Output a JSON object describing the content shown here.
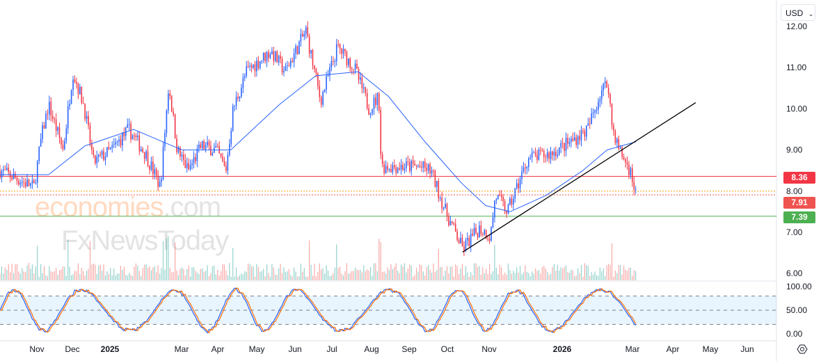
{
  "currency_selector": "USD",
  "watermark": {
    "line1": "economies",
    "line1_suffix": ".com",
    "line2": "FxNewsToday"
  },
  "price_labels": [
    {
      "value": "8.36",
      "color": "#f23645"
    },
    {
      "value": "7.91",
      "color": "#ef5350"
    },
    {
      "value": "7.39",
      "color": "#4caf50"
    }
  ],
  "chart_data": {
    "type": "candlestick",
    "title": "",
    "y_ticks": [
      "12.00",
      "11.00",
      "10.00",
      "9.00",
      "8.00",
      "7.00",
      "6.00"
    ],
    "ylim": [
      6,
      12
    ],
    "x_ticks": [
      "Nov",
      "Dec",
      "2025",
      "Mar",
      "Apr",
      "May",
      "Jun",
      "Jul",
      "Aug",
      "Sep",
      "Oct",
      "Nov",
      "2026",
      "Mar",
      "Apr",
      "May",
      "Jun"
    ],
    "price_path_days_from_2024_10_15": [
      [
        0,
        8.5
      ],
      [
        28,
        8.1
      ],
      [
        34,
        9.3
      ],
      [
        40,
        10.1
      ],
      [
        52,
        9.0
      ],
      [
        60,
        10.9
      ],
      [
        69,
        10.1
      ],
      [
        77,
        8.7
      ],
      [
        92,
        9.0
      ],
      [
        106,
        9.5
      ],
      [
        120,
        8.9
      ],
      [
        132,
        8.1
      ],
      [
        139,
        10.6
      ],
      [
        146,
        9.0
      ],
      [
        155,
        8.5
      ],
      [
        166,
        9.1
      ],
      [
        178,
        9.0
      ],
      [
        186,
        8.5
      ],
      [
        192,
        10.0
      ],
      [
        203,
        10.9
      ],
      [
        223,
        11.4
      ],
      [
        235,
        10.9
      ],
      [
        252,
        11.9
      ],
      [
        264,
        10.2
      ],
      [
        278,
        11.5
      ],
      [
        292,
        11.0
      ],
      [
        304,
        10.0
      ],
      [
        312,
        10.3
      ],
      [
        314,
        8.6
      ],
      [
        344,
        8.6
      ],
      [
        355,
        8.5
      ],
      [
        367,
        7.5
      ],
      [
        381,
        6.6
      ],
      [
        395,
        7.1
      ],
      [
        404,
        6.9
      ],
      [
        408,
        7.9
      ],
      [
        418,
        7.5
      ],
      [
        435,
        8.8
      ],
      [
        453,
        8.9
      ],
      [
        470,
        9.2
      ],
      [
        484,
        9.5
      ],
      [
        496,
        10.5
      ],
      [
        501,
        10.6
      ],
      [
        504,
        9.6
      ],
      [
        510,
        9.0
      ],
      [
        519,
        8.5
      ],
      [
        524,
        7.91
      ]
    ],
    "moving_average_path": [
      [
        0,
        8.4
      ],
      [
        40,
        8.4
      ],
      [
        70,
        9.1
      ],
      [
        110,
        9.5
      ],
      [
        150,
        9.0
      ],
      [
        190,
        9.0
      ],
      [
        230,
        10.1
      ],
      [
        260,
        10.8
      ],
      [
        295,
        10.9
      ],
      [
        320,
        10.3
      ],
      [
        350,
        9.2
      ],
      [
        380,
        8.2
      ],
      [
        400,
        7.65
      ],
      [
        420,
        7.5
      ],
      [
        450,
        7.9
      ],
      [
        480,
        8.5
      ],
      [
        500,
        9.0
      ],
      [
        524,
        9.2
      ]
    ],
    "horizontal_lines": [
      {
        "price": 8.36,
        "style": "solid",
        "color": "#f23645"
      },
      {
        "price": 7.39,
        "style": "solid",
        "color": "#4caf50"
      },
      {
        "price": 8.0,
        "style": "dotted",
        "color": "#ff9800"
      },
      {
        "price": 7.91,
        "style": "dotted",
        "color": "#ef5350"
      }
    ],
    "trendline": {
      "from": [
        381,
        6.52
      ],
      "to": [
        573,
        10.15
      ]
    },
    "oscillator": {
      "name": "Stochastic",
      "y_ticks": [
        "100.00",
        "50.00",
        "0.00"
      ],
      "bands": [
        20,
        50,
        80
      ]
    }
  }
}
